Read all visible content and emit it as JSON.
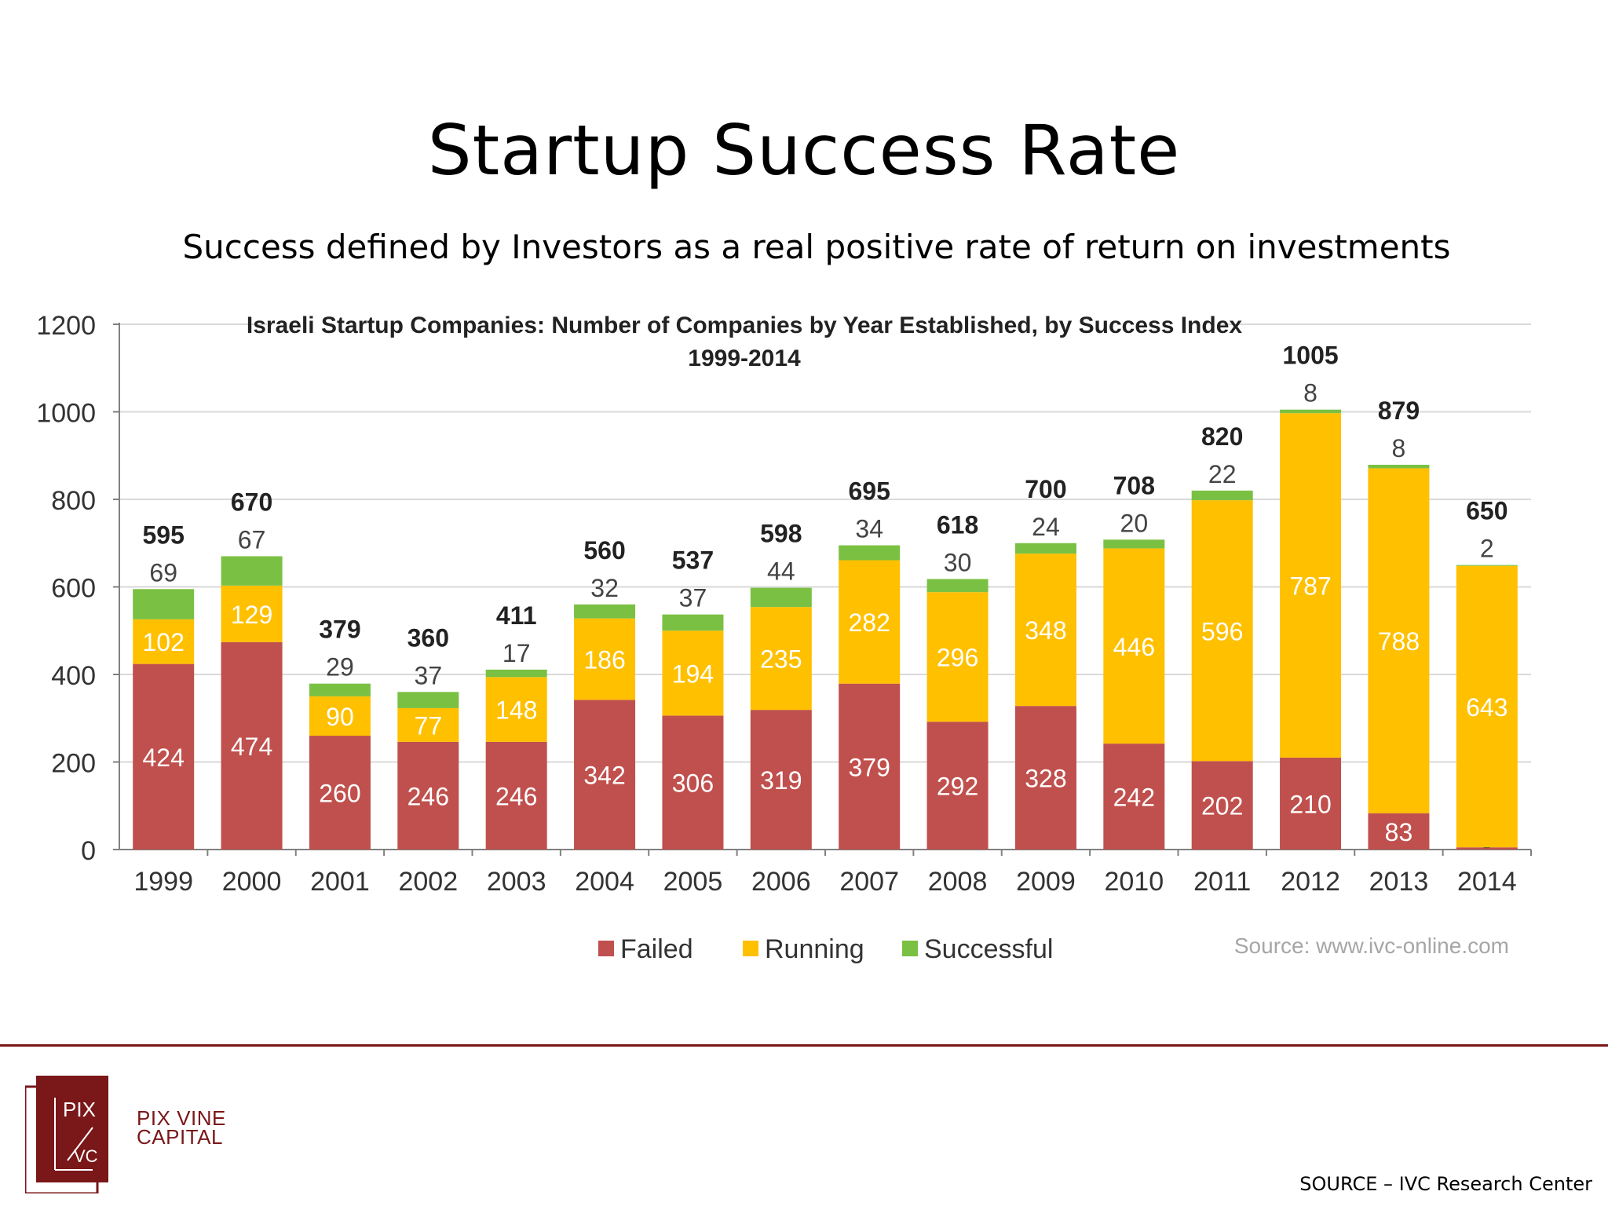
{
  "slide": {
    "title": "Startup Success Rate",
    "subtitle": "Success defined by Investors as a real positive rate of return on investments",
    "footer_source": "SOURCE – IVC Research Center"
  },
  "logo": {
    "mark_top": "PIX",
    "mark_bottom": "VC",
    "name_line1": "PIX VINE",
    "name_line2": "CAPITAL",
    "color": "#7a1719"
  },
  "chart_data": {
    "type": "bar",
    "stacked": true,
    "title": "Israeli Startup Companies: Number of Companies by Year Established, by Success Index",
    "subtitle": "1999-2014",
    "source_note": "Source: www.ivc-online.com",
    "categories": [
      "1999",
      "2000",
      "2001",
      "2002",
      "2003",
      "2004",
      "2005",
      "2006",
      "2007",
      "2008",
      "2009",
      "2010",
      "2011",
      "2012",
      "2013",
      "2014"
    ],
    "series": [
      {
        "name": "Failed",
        "color": "#c0504d",
        "values": [
          424,
          474,
          260,
          246,
          246,
          342,
          306,
          319,
          379,
          292,
          328,
          242,
          202,
          210,
          83,
          5
        ]
      },
      {
        "name": "Running",
        "color": "#ffc000",
        "values": [
          102,
          129,
          90,
          77,
          148,
          186,
          194,
          235,
          282,
          296,
          348,
          446,
          596,
          787,
          788,
          643
        ]
      },
      {
        "name": "Successful",
        "color": "#7ac143",
        "values": [
          69,
          67,
          29,
          37,
          17,
          32,
          37,
          44,
          34,
          30,
          24,
          20,
          22,
          8,
          8,
          2
        ]
      }
    ],
    "totals": [
      595,
      670,
      379,
      360,
      411,
      560,
      537,
      598,
      695,
      618,
      700,
      708,
      820,
      1005,
      879,
      650
    ],
    "ylim": [
      0,
      1200
    ],
    "yticks": [
      0,
      200,
      400,
      600,
      800,
      1000,
      1200
    ],
    "grid": true,
    "legend_position": "bottom-center"
  }
}
